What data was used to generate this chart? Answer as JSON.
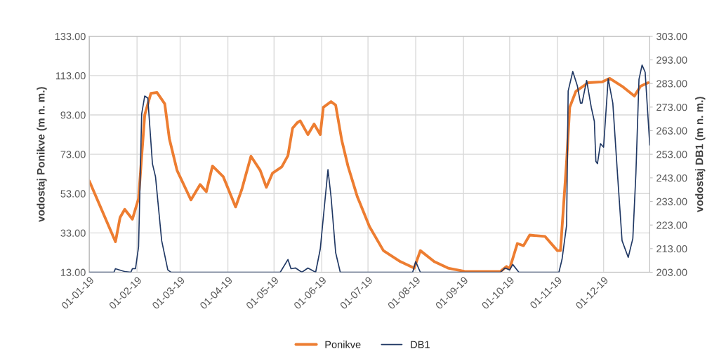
{
  "chart_data": {
    "type": "line",
    "ylabel": "vodostaj Ponikve (m n. m.)",
    "y2label": "vodostaj DB1 (m n. m.)",
    "series": [
      {
        "name": "Ponikve",
        "color": "#ed7d31",
        "x": [
          "2019-01-01",
          "2019-01-18",
          "2019-01-21",
          "2019-01-24",
          "2019-01-29",
          "2019-02-02",
          "2019-02-06",
          "2019-02-10",
          "2019-02-14",
          "2019-02-19",
          "2019-02-22",
          "2019-02-27",
          "2019-03-08",
          "2019-03-14",
          "2019-03-18",
          "2019-03-22",
          "2019-03-29",
          "2019-04-06",
          "2019-04-10",
          "2019-04-16",
          "2019-04-22",
          "2019-04-26",
          "2019-04-30",
          "2019-05-06",
          "2019-05-10",
          "2019-05-13",
          "2019-05-16",
          "2019-05-18",
          "2019-05-23",
          "2019-05-27",
          "2019-05-31",
          "2019-06-02",
          "2019-06-07",
          "2019-06-10",
          "2019-06-14",
          "2019-06-18",
          "2019-06-24",
          "2019-07-02",
          "2019-07-11",
          "2019-07-22",
          "2019-07-31",
          "2019-08-04",
          "2019-08-13",
          "2019-08-22",
          "2019-09-02",
          "2019-09-25",
          "2019-09-29",
          "2019-10-01",
          "2019-10-06",
          "2019-10-10",
          "2019-10-14",
          "2019-10-24",
          "2019-11-01",
          "2019-11-03",
          "2019-11-07",
          "2019-11-09",
          "2019-11-13",
          "2019-11-21",
          "2019-11-30",
          "2019-12-05",
          "2019-12-13",
          "2019-12-21",
          "2019-12-25",
          "2019-12-30"
        ],
        "values": [
          59.4,
          28.5,
          40.9,
          45,
          40,
          50.5,
          93,
          104,
          104.4,
          98.7,
          80.9,
          64.8,
          49.8,
          57.6,
          54,
          67,
          61.6,
          46.2,
          55,
          72,
          64.8,
          56.2,
          63.4,
          66.6,
          72.3,
          86.2,
          89,
          90,
          83,
          88.4,
          83,
          96.9,
          99.8,
          98,
          80,
          67,
          51.6,
          36.2,
          24,
          18.4,
          15.1,
          24,
          18.4,
          15.1,
          13.4,
          13.4,
          15.9,
          14.8,
          27.6,
          26.5,
          31.9,
          31.2,
          24,
          24,
          69.4,
          96.9,
          105,
          109.4,
          109.8,
          111.6,
          107.6,
          102.6,
          107.6,
          109.4
        ]
      },
      {
        "name": "DB1",
        "color": "#203864",
        "axis": "y2",
        "x": [
          "2019-01-01",
          "2019-01-17",
          "2019-01-18",
          "2019-01-24",
          "2019-01-28",
          "2019-01-29",
          "2019-01-31",
          "2019-02-02",
          "2019-02-04",
          "2019-02-06",
          "2019-02-08",
          "2019-02-11",
          "2019-02-13",
          "2019-02-17",
          "2019-02-21",
          "2019-02-23",
          "2019-05-05",
          "2019-05-10",
          "2019-05-12",
          "2019-05-15",
          "2019-05-19",
          "2019-05-23",
          "2019-05-28",
          "2019-05-31",
          "2019-06-05",
          "2019-06-07",
          "2019-06-10",
          "2019-06-13",
          "2019-07-30",
          "2019-08-01",
          "2019-08-04",
          "2019-09-25",
          "2019-09-28",
          "2019-10-01",
          "2019-10-03",
          "2019-10-07",
          "2019-11-02",
          "2019-11-04",
          "2019-11-07",
          "2019-11-08",
          "2019-11-11",
          "2019-11-14",
          "2019-11-16",
          "2019-11-17",
          "2019-11-20",
          "2019-11-23",
          "2019-11-25",
          "2019-11-26",
          "2019-11-27",
          "2019-11-29",
          "2019-12-01",
          "2019-12-04",
          "2019-12-07",
          "2019-12-10",
          "2019-12-13",
          "2019-12-17",
          "2019-12-20",
          "2019-12-22",
          "2019-12-24",
          "2019-12-26",
          "2019-12-28",
          "2019-12-31"
        ],
        "values": [
          203,
          203,
          204.5,
          203.3,
          203,
          204.5,
          204.5,
          213.7,
          270,
          277.7,
          276.8,
          249,
          243.5,
          216.4,
          204,
          203,
          203,
          208.4,
          204.5,
          204.8,
          203,
          204.8,
          203,
          212.8,
          246.5,
          235,
          211.3,
          203,
          203,
          207.5,
          203,
          203,
          204.8,
          204,
          206.3,
          203,
          203,
          208.4,
          223,
          279.8,
          288.1,
          281.9,
          274.7,
          274.7,
          284.3,
          272.9,
          267,
          250,
          249,
          257.5,
          256,
          285,
          274.7,
          245,
          216.4,
          209.3,
          217.3,
          245,
          284.8,
          290.8,
          287.8,
          256.9
        ]
      }
    ],
    "xlim": [
      "2019-01-01",
      "2019-12-31"
    ],
    "xticks": [
      {
        "value": "2019-01-01",
        "label": "01-01-19"
      },
      {
        "value": "2019-02-01",
        "label": "01-02-19"
      },
      {
        "value": "2019-03-01",
        "label": "01-03-19"
      },
      {
        "value": "2019-04-01",
        "label": "01-04-19"
      },
      {
        "value": "2019-05-01",
        "label": "01-05-19"
      },
      {
        "value": "2019-06-01",
        "label": "01-06-19"
      },
      {
        "value": "2019-07-01",
        "label": "01-07-19"
      },
      {
        "value": "2019-08-01",
        "label": "01-08-19"
      },
      {
        "value": "2019-09-01",
        "label": "01-09-19"
      },
      {
        "value": "2019-10-01",
        "label": "01-10-19"
      },
      {
        "value": "2019-11-01",
        "label": "01-11-19"
      },
      {
        "value": "2019-12-01",
        "label": "01-12-19"
      }
    ],
    "ylim": [
      13,
      133
    ],
    "yticks": [
      {
        "value": 13,
        "label": "13.00"
      },
      {
        "value": 33,
        "label": "33.00"
      },
      {
        "value": 53,
        "label": "53.00"
      },
      {
        "value": 73,
        "label": "73.00"
      },
      {
        "value": 93,
        "label": "93.00"
      },
      {
        "value": 113,
        "label": "113.00"
      },
      {
        "value": 133,
        "label": "133.00"
      }
    ],
    "y2lim": [
      203,
      303
    ],
    "y2ticks": [
      {
        "value": 203,
        "label": "203.00"
      },
      {
        "value": 213,
        "label": "213.00"
      },
      {
        "value": 223,
        "label": "223.00"
      },
      {
        "value": 233,
        "label": "233.00"
      },
      {
        "value": 243,
        "label": "243.00"
      },
      {
        "value": 253,
        "label": "253.00"
      },
      {
        "value": 263,
        "label": "263.00"
      },
      {
        "value": 273,
        "label": "273.00"
      },
      {
        "value": 283,
        "label": "283.00"
      },
      {
        "value": 293,
        "label": "293.00"
      },
      {
        "value": 303,
        "label": "303.00"
      }
    ],
    "grid": true,
    "legend": "bottom"
  }
}
